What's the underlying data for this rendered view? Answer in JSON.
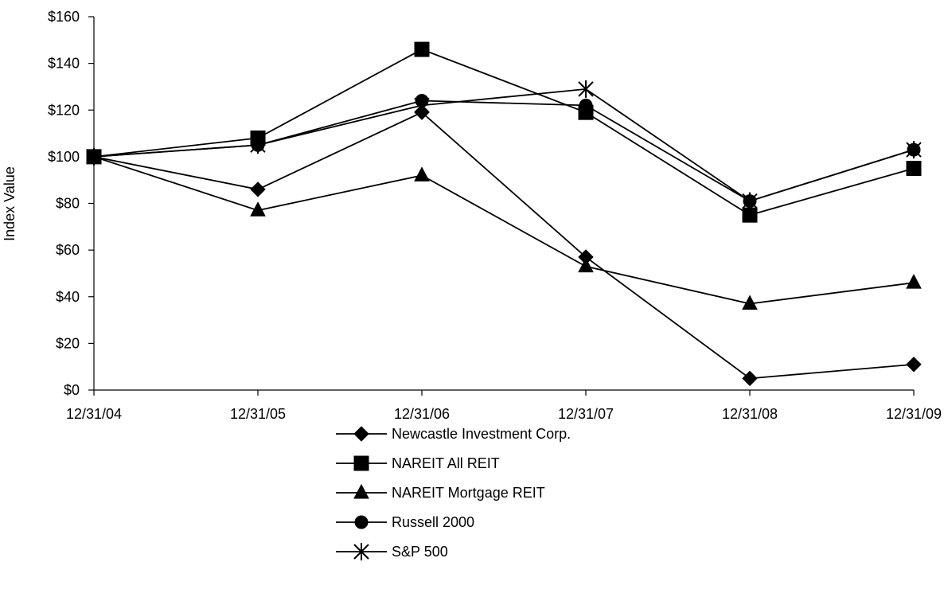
{
  "chart_data": {
    "type": "line",
    "title": "",
    "xlabel": "",
    "ylabel": "Index Value",
    "categories": [
      "12/31/04",
      "12/31/05",
      "12/31/06",
      "12/31/07",
      "12/31/08",
      "12/31/09"
    ],
    "ylim": [
      0,
      160
    ],
    "yticks": [
      0,
      20,
      40,
      60,
      80,
      100,
      120,
      140,
      160
    ],
    "ytick_labels": [
      "$0",
      "$20",
      "$40",
      "$60",
      "$80",
      "$100",
      "$120",
      "$140",
      "$160"
    ],
    "grid": false,
    "legend_position": "bottom",
    "series": [
      {
        "name": "Newcastle Investment Corp.",
        "marker": "diamond",
        "values": [
          100,
          86,
          119,
          57,
          5,
          11
        ]
      },
      {
        "name": "NAREIT All REIT",
        "marker": "square",
        "values": [
          100,
          108,
          146,
          119,
          75,
          95
        ]
      },
      {
        "name": "NAREIT Mortgage REIT",
        "marker": "triangle",
        "values": [
          100,
          77,
          92,
          53,
          37,
          46
        ]
      },
      {
        "name": "Russell 2000",
        "marker": "circle",
        "values": [
          100,
          105,
          124,
          122,
          81,
          103
        ]
      },
      {
        "name": "S&P 500",
        "marker": "star",
        "values": [
          100,
          105,
          122,
          129,
          81,
          103
        ]
      }
    ],
    "line_color": "#000000"
  }
}
